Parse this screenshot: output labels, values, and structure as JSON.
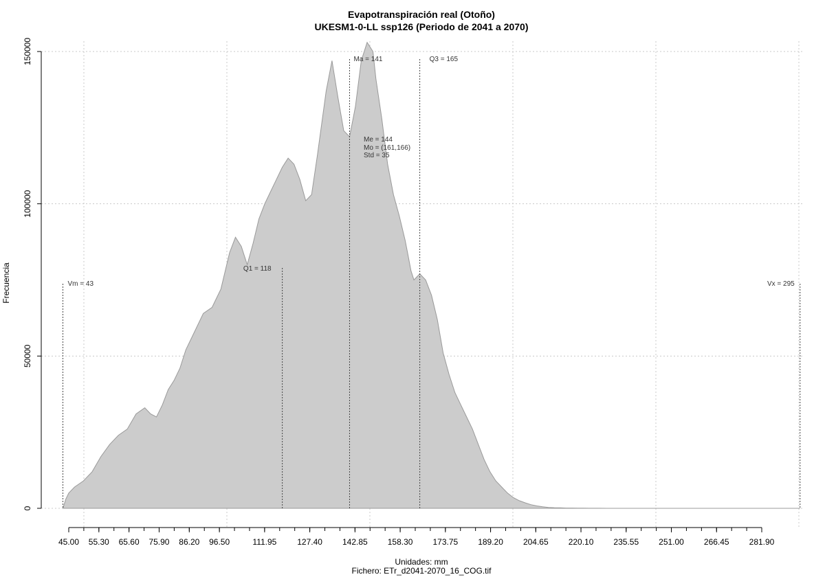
{
  "chart_data": {
    "type": "area",
    "title": "Evapotranspiración real (Otoño)",
    "subtitle": "UKESM1-0-LL ssp126 (Periodo de 2041 a 2070)",
    "xlabel": "Unidades: mm",
    "caption": "Fichero: ETr_d2041-2070_16_COG.tif",
    "ylabel": "Frecuencia",
    "xlim": [
      38,
      302
    ],
    "ylim": [
      0,
      150000
    ],
    "grid": true,
    "x_ticks": [
      "45.00",
      "55.30",
      "65.60",
      "75.90",
      "86.20",
      "96.50",
      "111.95",
      "127.40",
      "142.85",
      "158.30",
      "173.75",
      "189.20",
      "204.65",
      "220.10",
      "235.55",
      "251.00",
      "266.45",
      "281.90"
    ],
    "y_ticks": [
      "0",
      "50000",
      "100000",
      "150000"
    ],
    "color_fill": "#cccccc",
    "color_line": "#999999",
    "series": [
      {
        "x": [
          43,
          44,
          45,
          47,
          50,
          53,
          56,
          59,
          62,
          65,
          68,
          71,
          73,
          75,
          77,
          79,
          81,
          83,
          85,
          88,
          91,
          94,
          97,
          100,
          102,
          104,
          106,
          108,
          110,
          112,
          114,
          116,
          118,
          120,
          122,
          124,
          126,
          128,
          130,
          133,
          135,
          137,
          139,
          141,
          143,
          145,
          147,
          149,
          150,
          152,
          154,
          156,
          158,
          160,
          161,
          162,
          163,
          164,
          165,
          167,
          169,
          171,
          173,
          175,
          177,
          179,
          181,
          183,
          185,
          187,
          189,
          191,
          193,
          195,
          197,
          199,
          201,
          203,
          205,
          207,
          209,
          211,
          213,
          215,
          217,
          219,
          221,
          223,
          226,
          229,
          232,
          235,
          238,
          241,
          244,
          247,
          250,
          255,
          260,
          265,
          270,
          275,
          280,
          285,
          290,
          295
        ],
        "y": [
          0,
          3000,
          5000,
          7000,
          9000,
          12000,
          17000,
          21000,
          24000,
          26000,
          31000,
          33000,
          31000,
          30000,
          34000,
          39000,
          42000,
          46000,
          52000,
          58000,
          64000,
          66000,
          72000,
          84000,
          89000,
          86000,
          80000,
          87000,
          95000,
          100000,
          104000,
          108000,
          112000,
          115000,
          113000,
          108000,
          101000,
          103000,
          116000,
          137000,
          147000,
          135000,
          124000,
          122000,
          132000,
          147000,
          153000,
          150000,
          141000,
          128000,
          113000,
          103000,
          96000,
          88000,
          83000,
          78000,
          75000,
          76000,
          77000,
          75000,
          70000,
          62000,
          51000,
          44000,
          38000,
          34000,
          30000,
          26000,
          21000,
          16000,
          12000,
          9000,
          7000,
          5000,
          3500,
          2500,
          1800,
          1200,
          800,
          500,
          300,
          200,
          150,
          100,
          80,
          60,
          40,
          30,
          20,
          10,
          10,
          10,
          5,
          5,
          5,
          5,
          5,
          5,
          5,
          5,
          5,
          5,
          5,
          5,
          5,
          0
        ]
      }
    ],
    "annotations": [
      {
        "label": "Vm = 43",
        "x": 43
      },
      {
        "label": "Q1 = 118",
        "x": 118
      },
      {
        "label": "Ma = 141",
        "x": 141
      },
      {
        "label": "Q3 = 165",
        "x": 165
      },
      {
        "label": "Vx = 295",
        "x": 295
      }
    ],
    "stats": [
      "Me = 144",
      "Mo = (161,166)",
      "Std = 35"
    ]
  }
}
